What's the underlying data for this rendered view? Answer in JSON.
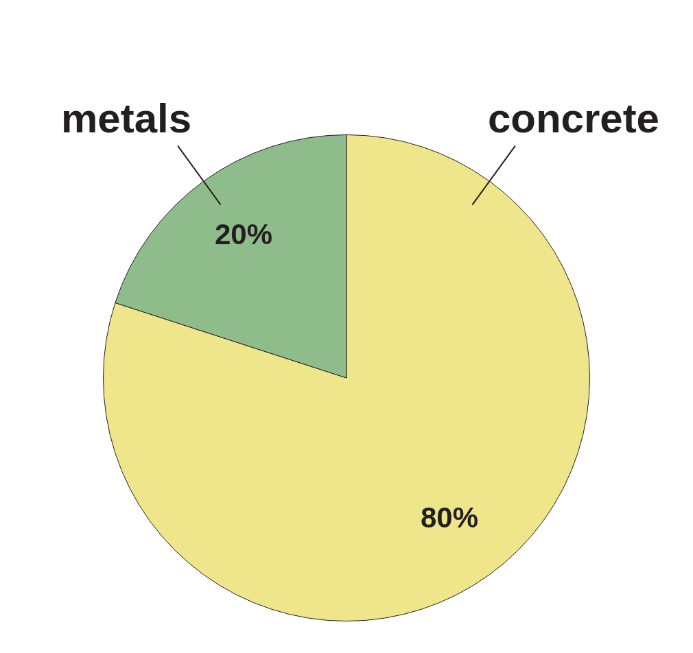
{
  "chart_data": {
    "type": "pie",
    "categories": [
      "concrete",
      "metals"
    ],
    "values": [
      80,
      20
    ],
    "colors": [
      "#efe68b",
      "#8fbc8b"
    ],
    "value_labels": [
      "80%",
      "20%"
    ],
    "legend": false
  }
}
